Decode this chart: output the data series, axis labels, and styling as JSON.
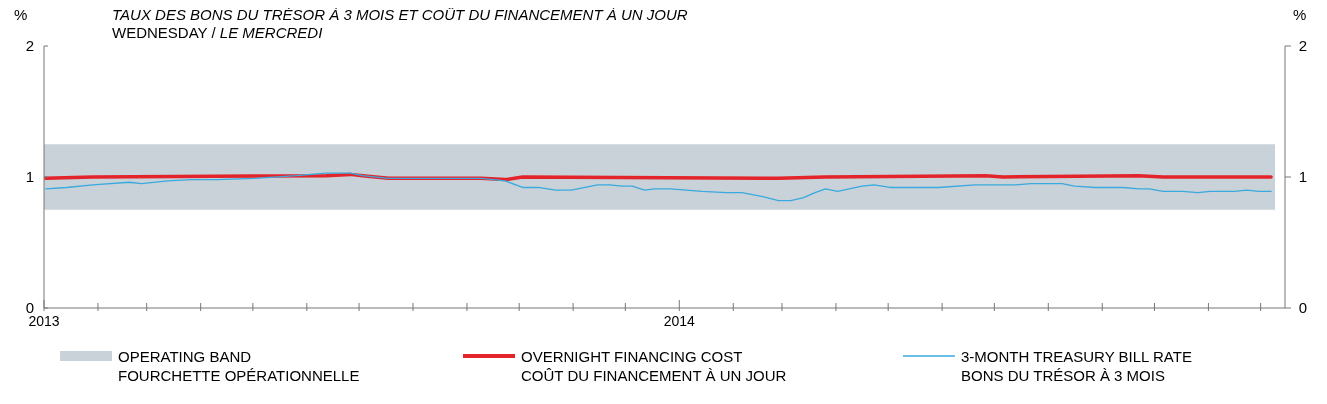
{
  "chart_data": {
    "type": "line",
    "title": "TAUX DES BONS DU TRÉSOR À 3 MOIS ET COÛT DU FINANCEMENT À UN JOUR",
    "subtitle": "WEDNESDAY / LE MERCREDI",
    "ylabel": "%",
    "y2label": "%",
    "xlim": [
      "2013-01-01",
      "2014-12-15"
    ],
    "xticks": [
      {
        "value": "2013-01-01",
        "label": "2013"
      },
      {
        "value": "2013-02-01",
        "label": null
      },
      {
        "value": "2013-03-01",
        "label": null
      },
      {
        "value": "2013-04-01",
        "label": null
      },
      {
        "value": "2013-05-01",
        "label": null
      },
      {
        "value": "2013-06-01",
        "label": null
      },
      {
        "value": "2013-07-01",
        "label": null
      },
      {
        "value": "2013-08-01",
        "label": null
      },
      {
        "value": "2013-09-01",
        "label": null
      },
      {
        "value": "2013-10-01",
        "label": null
      },
      {
        "value": "2013-11-01",
        "label": null
      },
      {
        "value": "2013-12-01",
        "label": null
      },
      {
        "value": "2014-01-01",
        "label": "2014"
      },
      {
        "value": "2014-02-01",
        "label": null
      },
      {
        "value": "2014-03-01",
        "label": null
      },
      {
        "value": "2014-04-01",
        "label": null
      },
      {
        "value": "2014-05-01",
        "label": null
      },
      {
        "value": "2014-06-01",
        "label": null
      },
      {
        "value": "2014-07-01",
        "label": null
      },
      {
        "value": "2014-08-01",
        "label": null
      },
      {
        "value": "2014-09-01",
        "label": null
      },
      {
        "value": "2014-10-01",
        "label": null
      },
      {
        "value": "2014-11-01",
        "label": null
      },
      {
        "value": "2014-12-01",
        "label": null
      }
    ],
    "ylim": [
      0,
      2
    ],
    "yticks": [
      0,
      1,
      2
    ],
    "y2lim": [
      0,
      2
    ],
    "y2ticks": [
      0,
      1,
      2
    ],
    "bands": [
      {
        "axis": "y",
        "from": 0.75,
        "to": 1.25,
        "label": "OPERATING BAND\nFOURCHETTE OPÉRATIONNELLE",
        "color": "#c8d2d8"
      }
    ],
    "legend": "bottom",
    "grid": false,
    "marker": "none",
    "series": [
      {
        "name": "3-MONTH TREASURY BILL RATE\nBONS DU TRÉSOR À 3 MOIS",
        "color": "#3aa9de",
        "line_style": "solid",
        "x": [
          "2013-01-02",
          "2013-01-14",
          "2013-01-29",
          "2013-02-19",
          "2013-02-26",
          "2013-03-13",
          "2013-03-27",
          "2013-04-10",
          "2013-05-02",
          "2013-05-26",
          "2013-06-12",
          "2013-06-26",
          "2013-07-03",
          "2013-07-18",
          "2013-08-21",
          "2013-09-09",
          "2013-09-23",
          "2013-10-03",
          "2013-10-12",
          "2013-10-22",
          "2013-10-31",
          "2013-11-15",
          "2013-11-22",
          "2013-11-29",
          "2013-12-05",
          "2013-12-12",
          "2013-12-18",
          "2013-12-27",
          "2014-01-14",
          "2014-01-28",
          "2014-02-06",
          "2014-02-18",
          "2014-02-27",
          "2014-03-06",
          "2014-03-13",
          "2014-03-20",
          "2014-03-26",
          "2014-04-02",
          "2014-04-16",
          "2014-04-23",
          "2014-05-02",
          "2014-05-11",
          "2014-05-23",
          "2014-05-30",
          "2014-06-20",
          "2014-06-26",
          "2014-07-06",
          "2014-07-13",
          "2014-07-22",
          "2014-08-09",
          "2014-08-16",
          "2014-08-28",
          "2014-09-13",
          "2014-09-22",
          "2014-09-28",
          "2014-10-06",
          "2014-10-17",
          "2014-10-26",
          "2014-11-02",
          "2014-11-16",
          "2014-11-23",
          "2014-11-30",
          "2014-12-07"
        ],
        "values": [
          0.91,
          0.92,
          0.94,
          0.96,
          0.95,
          0.97,
          0.98,
          0.98,
          0.99,
          1.01,
          1.03,
          1.03,
          1.01,
          0.99,
          0.99,
          0.99,
          0.97,
          0.92,
          0.92,
          0.9,
          0.9,
          0.94,
          0.94,
          0.93,
          0.93,
          0.9,
          0.91,
          0.91,
          0.89,
          0.88,
          0.88,
          0.85,
          0.82,
          0.82,
          0.84,
          0.88,
          0.91,
          0.89,
          0.93,
          0.94,
          0.92,
          0.92,
          0.92,
          0.92,
          0.94,
          0.94,
          0.94,
          0.94,
          0.95,
          0.95,
          0.93,
          0.92,
          0.92,
          0.91,
          0.91,
          0.89,
          0.89,
          0.88,
          0.89,
          0.89,
          0.9,
          0.89,
          0.89
        ]
      },
      {
        "name": "OVERNIGHT FINANCING COST\nCOÛT DU FINANCEMENT À UN JOUR",
        "color": "#e3242b",
        "line_style": "solid",
        "x": [
          "2013-01-02",
          "2013-01-29",
          "2013-06-12",
          "2013-06-26",
          "2013-07-03",
          "2013-07-18",
          "2013-09-09",
          "2013-09-23",
          "2013-10-03",
          "2014-02-27",
          "2014-03-26",
          "2014-06-26",
          "2014-07-06",
          "2014-09-22",
          "2014-10-06",
          "2014-12-07"
        ],
        "values": [
          0.99,
          1.0,
          1.01,
          1.02,
          1.01,
          0.99,
          0.99,
          0.98,
          1.0,
          0.99,
          1.0,
          1.01,
          1.0,
          1.01,
          1.0,
          1.0
        ]
      }
    ]
  }
}
